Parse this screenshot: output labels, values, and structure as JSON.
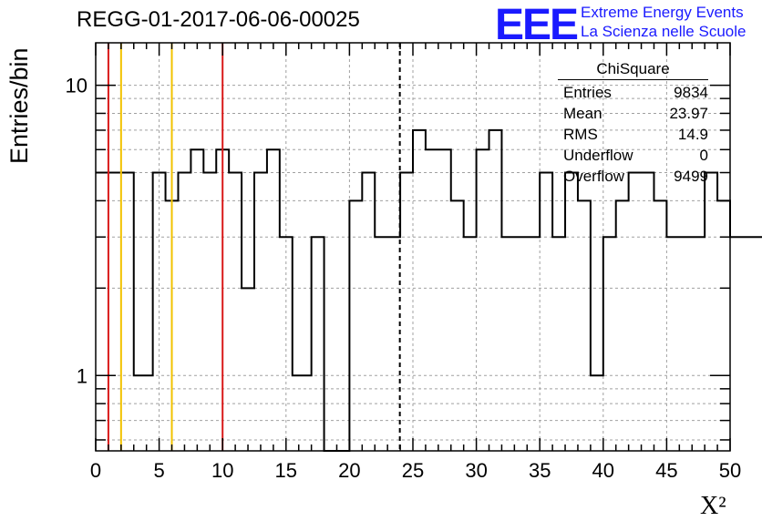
{
  "title": "REGG-01-2017-06-06-00025",
  "logo": {
    "mark": "EEE",
    "line1": "Extreme Energy Events",
    "line2": "La Scienza nelle Scuole"
  },
  "stats": {
    "title": "ChiSquare",
    "rows": [
      {
        "label": "Entries",
        "value": "9834"
      },
      {
        "label": "Mean",
        "value": "23.97"
      },
      {
        "label": "RMS",
        "value": "14.9"
      },
      {
        "label": "Underflow",
        "value": "0"
      },
      {
        "label": "Overflow",
        "value": "9499"
      }
    ]
  },
  "chart_data": {
    "type": "histogram",
    "ylabel": "Entries/bin",
    "xlabel": "X²",
    "x_scale": "linear",
    "y_scale": "log",
    "xlim": [
      0,
      50
    ],
    "ylim": [
      0.55,
      14
    ],
    "xticks": [
      0,
      5,
      10,
      15,
      20,
      25,
      30,
      35,
      40,
      45,
      50
    ],
    "ytick_labels": [
      {
        "value": 1,
        "label": "1"
      },
      {
        "value": 10,
        "label": "10"
      }
    ],
    "grid": true,
    "bin_width": 0.5,
    "values": [
      5,
      5,
      5,
      5,
      5,
      5,
      1,
      1,
      1,
      5,
      5,
      4,
      4,
      5,
      5,
      6,
      6,
      5,
      5,
      6,
      6,
      5,
      5,
      2,
      2,
      5,
      5,
      6,
      6,
      3,
      3,
      1,
      1,
      1,
      3,
      3,
      0,
      0,
      0,
      0,
      4,
      4,
      5,
      5,
      3,
      3,
      3,
      3,
      5,
      5,
      7,
      7,
      6,
      6,
      6,
      6,
      4,
      4,
      3,
      3,
      6,
      6,
      7,
      7,
      3,
      3,
      3,
      3,
      3,
      3,
      5,
      5,
      3,
      3,
      5,
      5,
      4,
      4,
      1,
      1,
      3,
      3,
      4,
      4,
      5,
      5,
      5,
      5,
      4,
      4,
      3,
      3,
      3,
      3,
      3,
      3,
      5,
      5,
      4,
      4,
      3,
      3,
      3,
      3,
      3,
      3,
      3,
      3,
      2,
      2,
      2,
      2,
      1,
      1,
      1,
      1,
      3,
      3,
      5,
      5,
      3,
      3,
      3,
      3,
      3,
      3,
      5,
      5,
      4,
      4,
      4,
      4,
      3,
      3,
      2,
      2,
      6,
      6,
      5,
      5,
      4,
      4,
      3,
      3,
      2,
      2,
      0,
      0,
      0,
      0,
      4,
      4,
      4,
      4,
      4,
      4,
      3,
      3,
      6,
      6,
      4,
      4,
      3,
      3,
      1,
      1,
      1,
      1,
      3,
      3,
      3,
      3,
      3,
      3,
      3,
      3,
      2,
      2,
      6,
      6,
      3,
      3,
      2,
      2,
      2,
      2,
      2,
      2,
      4,
      4,
      4,
      4,
      5,
      5,
      3,
      3,
      3,
      3,
      3,
      3,
      5,
      5,
      5,
      5,
      6,
      6,
      6,
      6,
      3,
      3,
      5,
      5,
      3,
      3,
      2,
      2,
      6,
      6,
      6,
      6,
      8,
      8,
      6,
      6,
      6,
      6,
      3,
      3,
      3,
      3,
      3,
      3,
      3,
      3,
      3,
      3,
      2,
      2,
      2,
      2,
      2,
      2,
      2,
      2,
      2,
      2,
      2,
      2,
      2,
      2,
      2,
      2,
      2,
      2,
      2,
      2,
      2,
      2,
      2,
      2,
      2,
      2,
      2,
      2,
      2,
      2,
      2,
      2,
      2,
      2,
      2,
      2,
      6,
      6,
      7,
      7,
      4,
      4,
      1,
      1,
      1,
      1,
      2,
      2,
      6,
      6,
      2,
      2,
      4,
      4,
      4,
      4,
      4,
      4,
      3,
      3,
      3,
      3,
      1,
      1,
      5,
      5,
      7,
      7,
      3,
      3,
      2,
      2,
      3,
      3,
      3,
      3,
      6,
      6,
      6,
      6,
      3,
      3,
      1,
      1,
      1,
      1,
      1,
      1,
      0,
      0,
      0,
      0,
      3,
      3,
      6,
      6,
      4,
      4,
      4,
      4,
      2,
      2,
      7,
      7,
      6,
      6,
      4,
      4,
      3,
      3,
      3,
      3,
      6,
      6,
      3,
      3,
      4,
      4,
      3,
      3,
      1,
      1,
      2,
      2,
      4,
      4,
      5,
      5,
      4,
      4,
      6,
      6,
      3,
      3,
      4,
      4,
      5,
      5,
      6,
      6,
      3,
      3,
      5,
      5,
      6,
      6,
      5,
      5,
      2,
      2,
      2,
      2,
      3,
      3,
      4,
      4
    ],
    "values_note": "",
    "vertical_lines": [
      {
        "x": 1.0,
        "color": "#d91a1a",
        "style": "solid"
      },
      {
        "x": 2.0,
        "color": "#f2c200",
        "style": "solid"
      },
      {
        "x": 6.0,
        "color": "#f2c200",
        "style": "solid"
      },
      {
        "x": 10.0,
        "color": "#d91a1a",
        "style": "solid"
      },
      {
        "x": 23.97,
        "color": "#000000",
        "style": "dashed"
      }
    ],
    "line_color": "#000000",
    "grid_color": "#a0a0a0"
  }
}
